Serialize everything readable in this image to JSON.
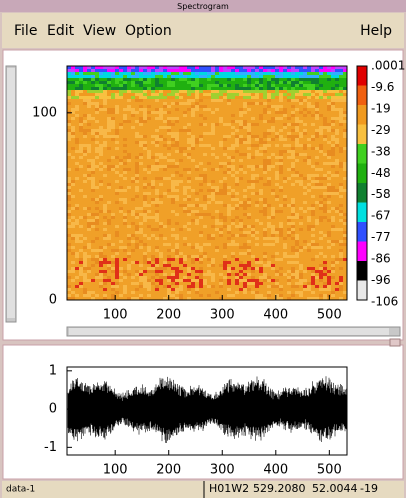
{
  "window_title": "Spectrogram",
  "menu": {
    "left": [
      "File",
      "Edit",
      "View",
      "Option"
    ],
    "right": "Help"
  },
  "spectrogram": {
    "xlim": [
      10,
      533
    ],
    "ylim": [
      0,
      125
    ],
    "xticks": [
      100,
      200,
      300,
      400,
      500
    ],
    "yticks": [
      0,
      100
    ],
    "colorbar": {
      "labels": [
        ".0001",
        "-9.6",
        "-19",
        "-29",
        "-38",
        "-48",
        "-58",
        "-67",
        "-77",
        "-86",
        "-96",
        "-106"
      ],
      "colors": [
        "#e00000",
        "#f06010",
        "#f09a20",
        "#f8c040",
        "#40d020",
        "#20b010",
        "#108030",
        "#00e0e0",
        "#3050ff",
        "#ff00ff",
        "#000000",
        "#e8e8e8"
      ]
    }
  },
  "waveform": {
    "xlim": [
      10,
      533
    ],
    "ylim": [
      -1.2,
      1.1
    ],
    "xticks": [
      100,
      200,
      300,
      400,
      500
    ],
    "yticks": [
      1,
      0,
      -1
    ]
  },
  "status": {
    "left": "data-1",
    "readout": [
      "H01W2",
      "529.2080",
      "52.0044",
      "-19"
    ]
  }
}
